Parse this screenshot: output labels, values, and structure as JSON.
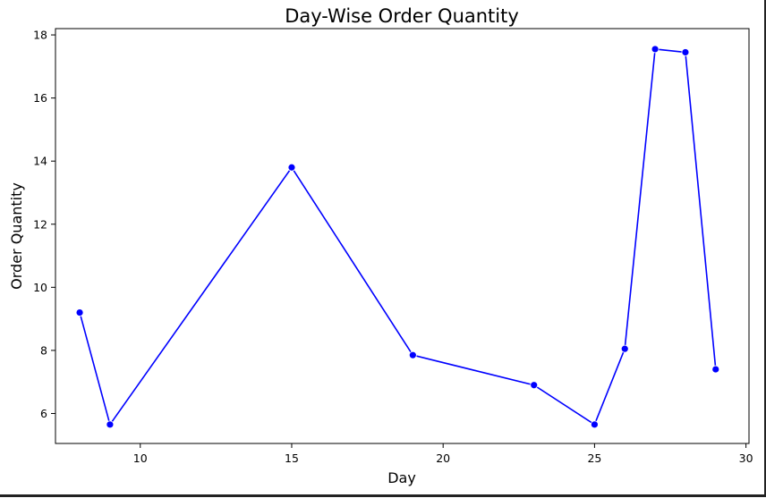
{
  "chart_data": {
    "type": "line",
    "title": "Day-Wise Order Quantity",
    "xlabel": "Day",
    "ylabel": "Order Quantity",
    "xlim": [
      7.2,
      30.1
    ],
    "ylim": [
      5.05,
      18.2
    ],
    "xticks": [
      10,
      15,
      20,
      25,
      30
    ],
    "yticks": [
      6,
      8,
      10,
      12,
      14,
      16,
      18
    ],
    "grid": false,
    "legend": false,
    "line_color": "#0000ff",
    "marker": "circle",
    "series": [
      {
        "x": [
          8,
          9,
          15,
          19,
          23,
          25,
          26,
          27,
          28,
          29
        ],
        "y": [
          9.2,
          5.65,
          13.8,
          7.85,
          6.9,
          5.65,
          8.05,
          17.55,
          17.45,
          7.4
        ]
      }
    ]
  }
}
